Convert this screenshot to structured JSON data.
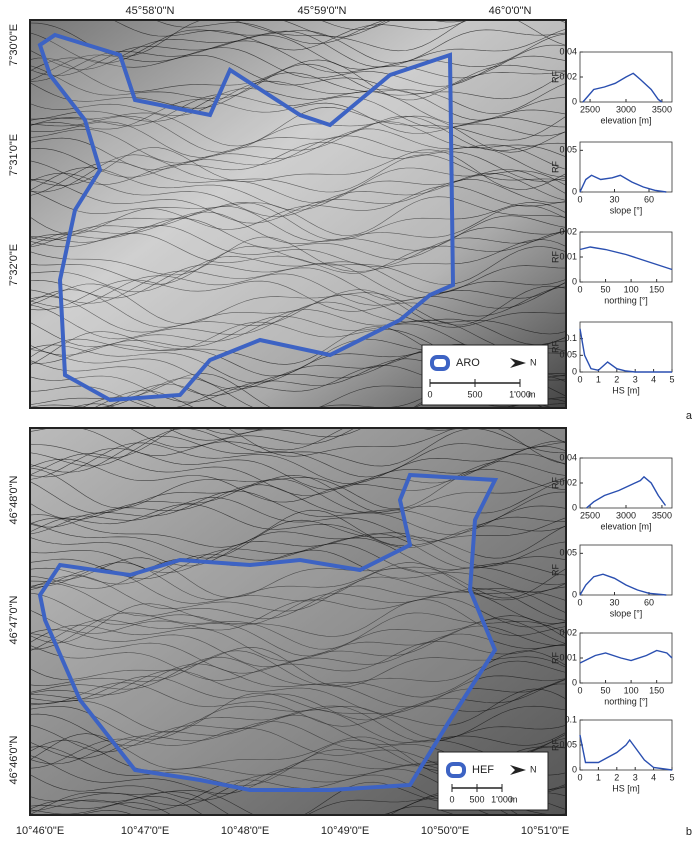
{
  "maps": [
    {
      "top_labels": [
        "45°58'0\"N",
        "45°59'0\"N",
        "46°0'0\"N"
      ],
      "left_labels": [
        "7°30'0\"E",
        "7°31'0\"E",
        "7°32'0\"E"
      ],
      "legend": "ARO",
      "north": "N",
      "scale_ticks": [
        0,
        500,
        {
          "value": 1000,
          "label": "1'000"
        }
      ],
      "scale_unit": "m",
      "panel": "a"
    },
    {
      "left_labels": [
        "46°48'0\"N",
        "46°47'0\"N",
        "46°46'0\"N"
      ],
      "bottom_labels": [
        "10°46'0\"E",
        "10°47'0\"E",
        "10°48'0\"E",
        "10°49'0\"E",
        "10°50'0\"E",
        "10°51'0\"E"
      ],
      "legend": "HEF",
      "north": "N",
      "scale_ticks": [
        0,
        500,
        {
          "value": 1000,
          "label": "1'000"
        }
      ],
      "scale_unit": "m",
      "panel": "b"
    }
  ],
  "chart_data": [
    {
      "type": "line",
      "ylabel": "RF",
      "xlabel": "elevation [m]",
      "xlim": [
        2360,
        3640
      ],
      "ylim": [
        0,
        0.04
      ],
      "xticks": [
        2500,
        3000,
        3500
      ],
      "yticks": [
        0,
        0.02,
        0.04
      ],
      "x": [
        2400,
        2550,
        2700,
        2850,
        3000,
        3100,
        3200,
        3350,
        3450,
        3500
      ],
      "series": [
        {
          "color": "#2a4fb0",
          "values": [
            0,
            0.01,
            0.012,
            0.015,
            0.02,
            0.023,
            0.018,
            0.01,
            0.002,
            0
          ]
        }
      ]
    },
    {
      "type": "line",
      "ylabel": "RF",
      "xlabel": "slope [°]",
      "xlim": [
        0,
        80
      ],
      "ylim": [
        0,
        0.06
      ],
      "xticks": [
        0,
        30,
        60
      ],
      "yticks": [
        0,
        0.05
      ],
      "x": [
        0,
        5,
        10,
        18,
        28,
        35,
        45,
        55,
        65,
        75
      ],
      "series": [
        {
          "color": "#2a4fb0",
          "values": [
            0,
            0.015,
            0.02,
            0.015,
            0.017,
            0.02,
            0.012,
            0.006,
            0.002,
            0
          ]
        }
      ]
    },
    {
      "type": "line",
      "ylabel": "RF",
      "xlabel": "northing [°]",
      "xlim": [
        0,
        180
      ],
      "ylim": [
        0,
        0.02
      ],
      "xticks": [
        0,
        50,
        100,
        150
      ],
      "yticks": [
        0,
        0.01,
        0.02
      ],
      "x": [
        0,
        20,
        50,
        90,
        120,
        150,
        180
      ],
      "series": [
        {
          "color": "#2a4fb0",
          "values": [
            0.013,
            0.014,
            0.013,
            0.011,
            0.009,
            0.007,
            0.005
          ]
        }
      ]
    },
    {
      "type": "line",
      "ylabel": "RF",
      "xlabel": "HS [m]",
      "xlim": [
        0,
        5
      ],
      "ylim": [
        0,
        0.15
      ],
      "xticks": [
        0,
        1,
        2,
        3,
        4,
        5
      ],
      "yticks": [
        0,
        0.05,
        0.1
      ],
      "x": [
        0,
        0.25,
        0.6,
        1,
        1.5,
        2,
        2.5,
        3,
        4,
        5
      ],
      "series": [
        {
          "color": "#2a4fb0",
          "values": [
            0.13,
            0.05,
            0.01,
            0.005,
            0.03,
            0.01,
            0.003,
            0,
            0,
            0
          ]
        }
      ]
    },
    {
      "type": "line",
      "ylabel": "RF",
      "xlabel": "elevation [m]",
      "xlim": [
        2360,
        3640
      ],
      "ylim": [
        0,
        0.04
      ],
      "xticks": [
        2500,
        3000,
        3500
      ],
      "yticks": [
        0,
        0.02,
        0.04
      ],
      "x": [
        2450,
        2550,
        2700,
        2900,
        3050,
        3200,
        3250,
        3350,
        3450,
        3550
      ],
      "series": [
        {
          "color": "#2a4fb0",
          "values": [
            0,
            0.005,
            0.01,
            0.014,
            0.018,
            0.022,
            0.025,
            0.02,
            0.01,
            0.002
          ]
        }
      ]
    },
    {
      "type": "line",
      "ylabel": "RF",
      "xlabel": "slope [°]",
      "xlim": [
        0,
        80
      ],
      "ylim": [
        0,
        0.06
      ],
      "xticks": [
        0,
        30,
        60
      ],
      "yticks": [
        0,
        0.05
      ],
      "x": [
        0,
        5,
        12,
        20,
        30,
        40,
        50,
        60,
        75
      ],
      "series": [
        {
          "color": "#2a4fb0",
          "values": [
            0,
            0.012,
            0.022,
            0.025,
            0.02,
            0.012,
            0.006,
            0.002,
            0
          ]
        }
      ]
    },
    {
      "type": "line",
      "ylabel": "RF",
      "xlabel": "northing [°]",
      "xlim": [
        0,
        180
      ],
      "ylim": [
        0,
        0.02
      ],
      "xticks": [
        0,
        50,
        100,
        150
      ],
      "yticks": [
        0,
        0.01,
        0.02
      ],
      "x": [
        0,
        30,
        50,
        80,
        100,
        130,
        150,
        170,
        180
      ],
      "series": [
        {
          "color": "#2a4fb0",
          "values": [
            0.008,
            0.011,
            0.012,
            0.01,
            0.009,
            0.011,
            0.013,
            0.012,
            0.01
          ]
        }
      ]
    },
    {
      "type": "line",
      "ylabel": "RF",
      "xlabel": "HS [m]",
      "xlim": [
        0,
        5
      ],
      "ylim": [
        0,
        0.1
      ],
      "xticks": [
        0,
        1,
        2,
        3,
        4,
        5
      ],
      "yticks": [
        0,
        0.05,
        0.1
      ],
      "x": [
        0,
        0.3,
        1,
        1.5,
        2,
        2.5,
        2.7,
        3,
        3.5,
        4,
        5
      ],
      "series": [
        {
          "color": "#2a4fb0",
          "values": [
            0.07,
            0.015,
            0.015,
            0.025,
            0.035,
            0.05,
            0.06,
            0.045,
            0.02,
            0.005,
            0
          ]
        }
      ]
    }
  ]
}
